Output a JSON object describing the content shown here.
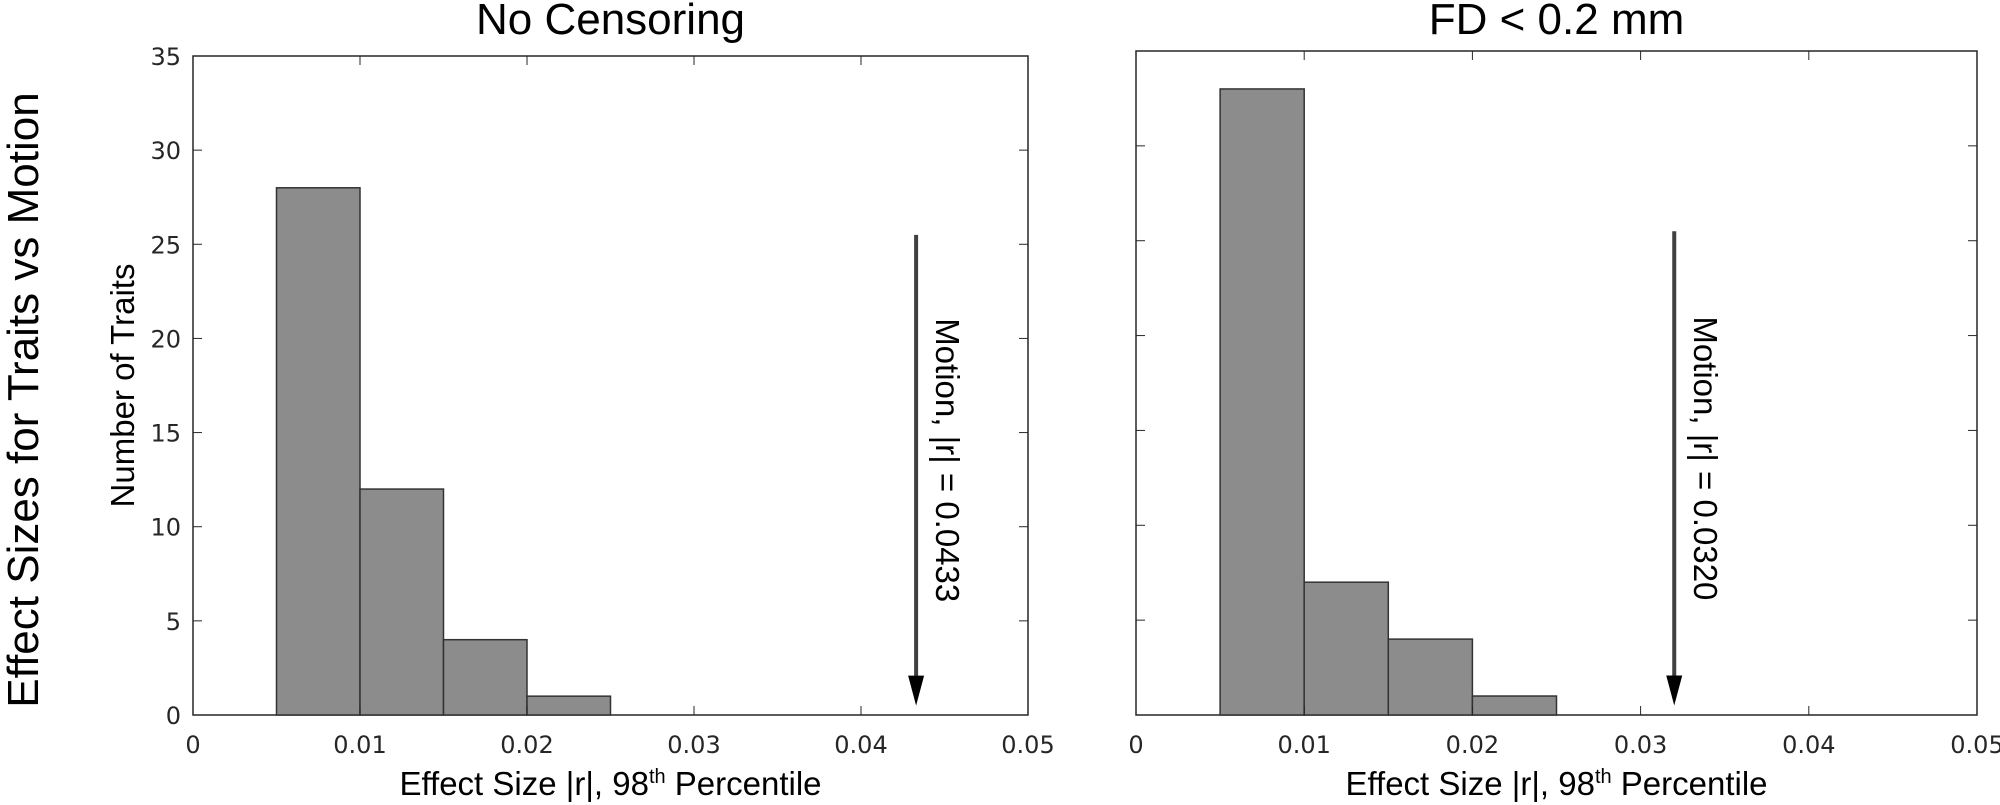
{
  "figure": {
    "suptitle": "Effect Sizes for Traits vs Motion",
    "bar_color": "#8c8c8c",
    "edge_color": "#333333",
    "arrow_color": "#404040"
  },
  "chart_data": [
    {
      "type": "bar",
      "title": "No Censoring",
      "xlabel_main": "Effect Size |r|, 98",
      "xlabel_sup": "th",
      "xlabel_tail": " Percentile",
      "ylabel": "Number of Traits",
      "xlim": [
        0,
        0.05
      ],
      "ylim": [
        0,
        35
      ],
      "xticks": [
        0,
        0.01,
        0.02,
        0.03,
        0.04,
        0.05
      ],
      "xtick_labels": [
        "0",
        "0.01",
        "0.02",
        "0.03",
        "0.04",
        "0.05"
      ],
      "yticks": [
        0,
        5,
        10,
        15,
        20,
        25,
        30,
        35
      ],
      "ytick_labels": [
        "0",
        "5",
        "10",
        "15",
        "20",
        "25",
        "30",
        "35"
      ],
      "show_ytick_labels": true,
      "bin_edges": [
        0.005,
        0.01,
        0.015,
        0.02,
        0.025
      ],
      "values": [
        28,
        12,
        4,
        1
      ],
      "annotation": {
        "text": "Motion, |r| = 0.0433",
        "x": 0.0433,
        "y_start": 25.5,
        "y_end": 0.5
      }
    },
    {
      "type": "bar",
      "title": "FD < 0.2 mm",
      "xlabel_main": "Effect Size |r|, 98",
      "xlabel_sup": "th",
      "xlabel_tail": " Percentile",
      "ylabel": "",
      "xlim": [
        0,
        0.05
      ],
      "ylim": [
        0,
        35
      ],
      "xticks": [
        0,
        0.01,
        0.02,
        0.03,
        0.04,
        0.05
      ],
      "xtick_labels": [
        "0",
        "0.01",
        "0.02",
        "0.03",
        "0.04",
        "0.05"
      ],
      "yticks": [
        0,
        5,
        10,
        15,
        20,
        25,
        30,
        35
      ],
      "ytick_labels": [],
      "show_ytick_labels": false,
      "bin_edges": [
        0.005,
        0.01,
        0.015,
        0.02,
        0.025
      ],
      "values": [
        33,
        7,
        4,
        1
      ],
      "annotation": {
        "text": "Motion, |r| = 0.0320",
        "x": 0.032,
        "y_start": 25.5,
        "y_end": 0.5
      }
    }
  ]
}
